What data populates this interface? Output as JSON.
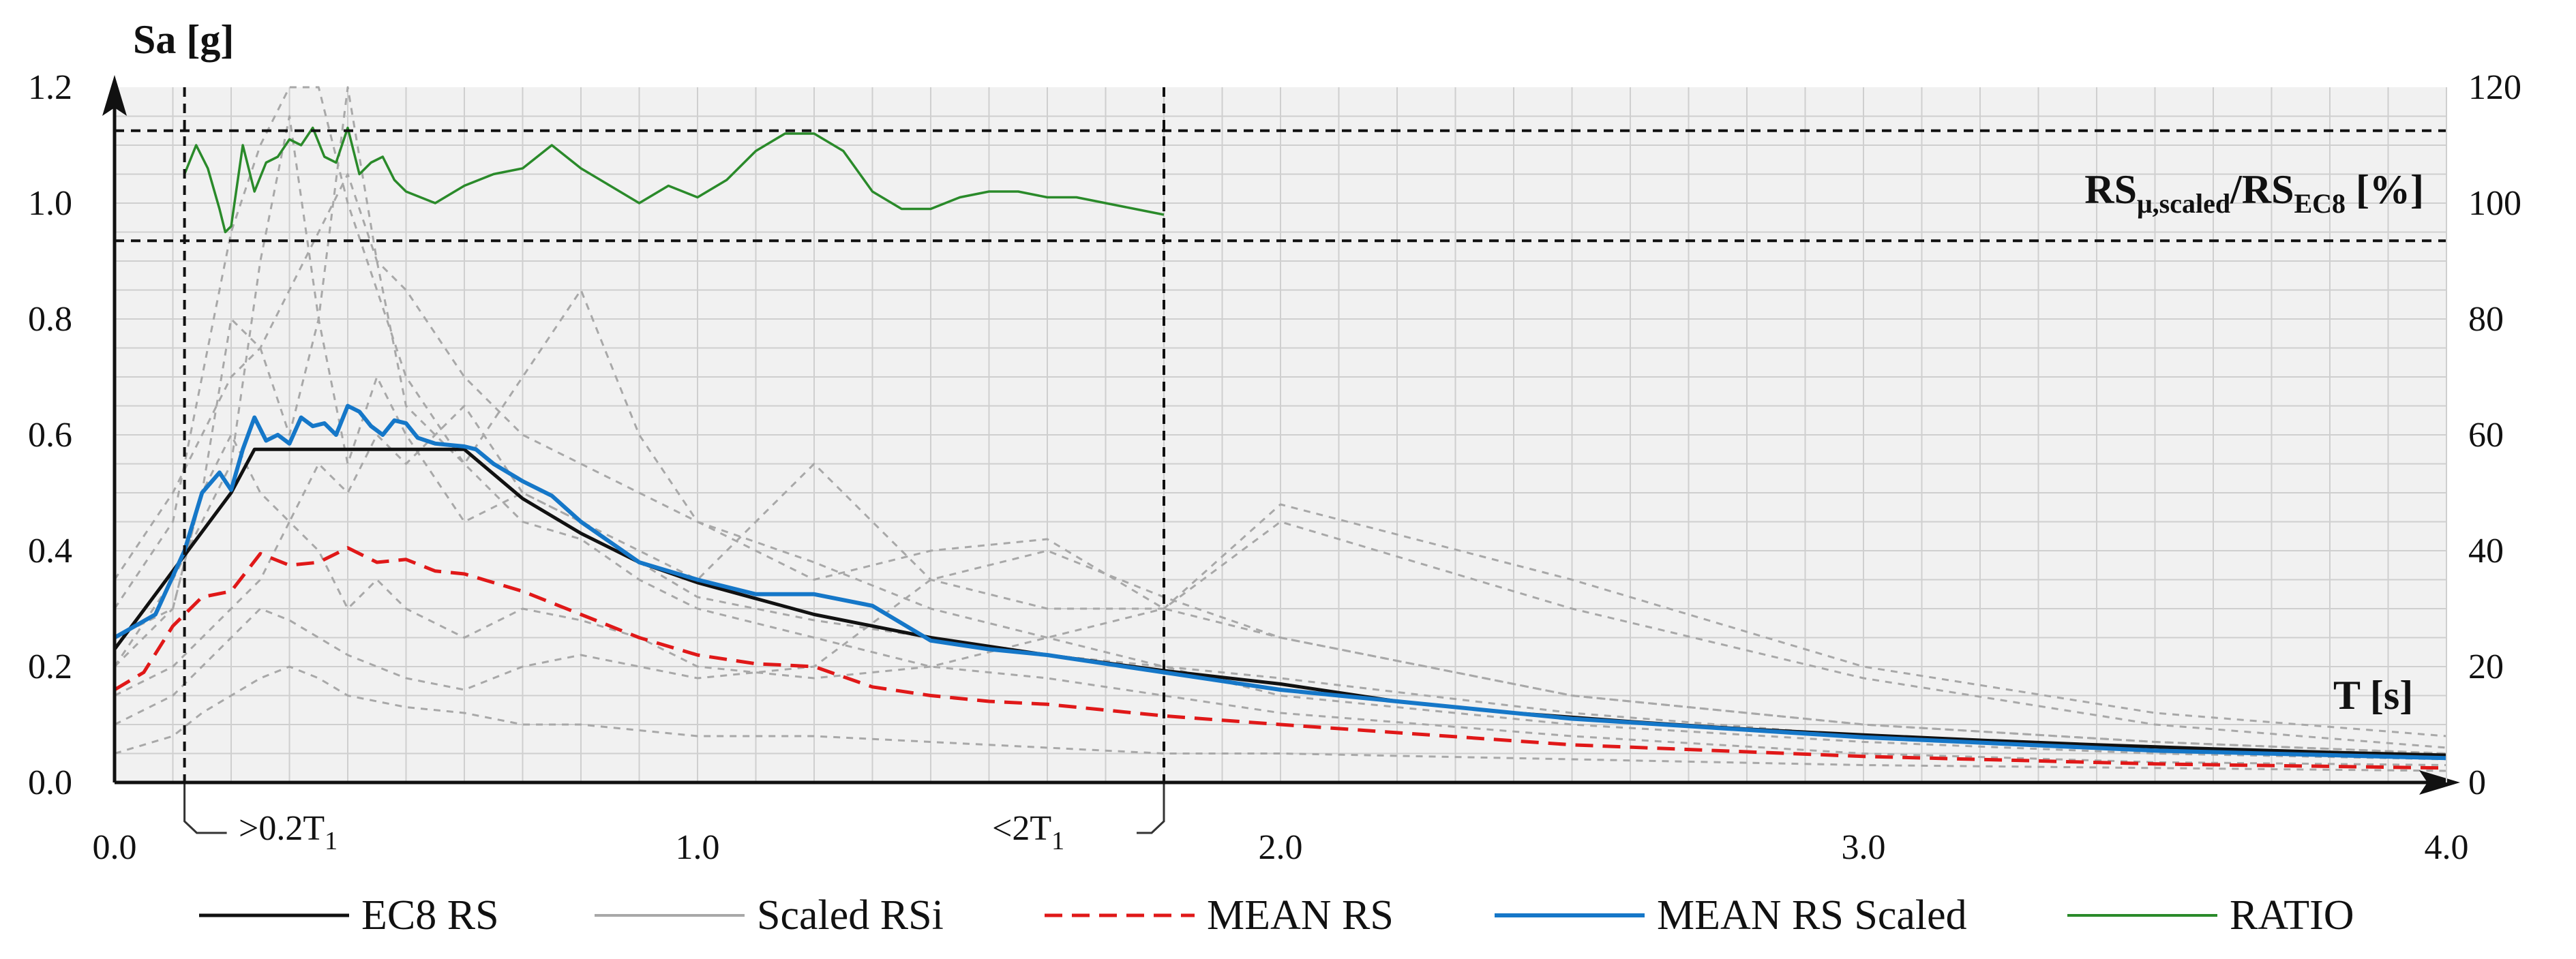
{
  "chart_data": {
    "type": "line",
    "xlabel": "T [s]",
    "ylabel": "Sa [g]",
    "secondary_ylabel": {
      "main": "RS",
      "sub1": "μ,scaled",
      "sep": "/RS",
      "sub2": "EC8",
      "tail": " [%]"
    },
    "xlim": [
      0,
      4.0
    ],
    "ylim": [
      0,
      1.2
    ],
    "secondary_ylim": [
      0,
      120
    ],
    "x_ticks": [
      "0.0",
      "1.0",
      "2.0",
      "3.0",
      "4.0"
    ],
    "y_ticks": [
      "0.0",
      "0.2",
      "0.4",
      "0.6",
      "0.8",
      "1.0",
      "1.2"
    ],
    "secondary_y_ticks": [
      "0",
      "20",
      "40",
      "60",
      "80",
      "100",
      "120"
    ],
    "grid": true,
    "reference_lines": {
      "vertical": [
        {
          "x": 0.12,
          "label_main": ">0.2T",
          "label_sub": "1"
        },
        {
          "x": 1.8,
          "label_main": "<2T",
          "label_sub": "1"
        }
      ],
      "horizontal_secondary": [
        {
          "y": 112.5
        },
        {
          "y": 93.5
        }
      ]
    },
    "legend": [
      {
        "label": "EC8 RS",
        "color": "#111111",
        "style": "solid"
      },
      {
        "label": "Scaled RSi",
        "color": "#a8a8a8",
        "style": "solid"
      },
      {
        "label": "MEAN RS",
        "color": "#e01818",
        "style": "dashed"
      },
      {
        "label": "MEAN RS Scaled",
        "color": "#1577c8",
        "style": "solid"
      },
      {
        "label": "RATIO",
        "color": "#2a8a2a",
        "style": "solid"
      }
    ],
    "series": [
      {
        "name": "EC8 RS",
        "color": "#111111",
        "dash": "none",
        "axis": "left",
        "x": [
          0.0,
          0.2,
          0.24,
          0.6,
          0.7,
          0.8,
          0.9,
          1.0,
          1.2,
          1.4,
          1.6,
          1.8,
          2.0,
          2.2,
          2.4,
          2.6,
          2.8,
          3.0,
          3.2,
          3.4,
          3.6,
          3.8,
          4.0
        ],
        "y": [
          0.23,
          0.5,
          0.575,
          0.575,
          0.49,
          0.43,
          0.38,
          0.345,
          0.29,
          0.25,
          0.22,
          0.193,
          0.17,
          0.14,
          0.12,
          0.105,
          0.092,
          0.082,
          0.073,
          0.065,
          0.058,
          0.052,
          0.047
        ]
      },
      {
        "name": "MEAN RS Scaled",
        "color": "#1577c8",
        "dash": "none",
        "axis": "left",
        "x": [
          0.0,
          0.07,
          0.12,
          0.15,
          0.18,
          0.2,
          0.22,
          0.24,
          0.26,
          0.28,
          0.3,
          0.32,
          0.34,
          0.36,
          0.38,
          0.4,
          0.42,
          0.44,
          0.46,
          0.48,
          0.5,
          0.52,
          0.55,
          0.6,
          0.62,
          0.65,
          0.7,
          0.75,
          0.8,
          0.9,
          1.0,
          1.1,
          1.2,
          1.3,
          1.4,
          1.5,
          1.6,
          1.7,
          1.8,
          2.0,
          2.5,
          3.0,
          3.5,
          4.0
        ],
        "y": [
          0.25,
          0.29,
          0.4,
          0.5,
          0.535,
          0.505,
          0.575,
          0.63,
          0.59,
          0.6,
          0.585,
          0.63,
          0.615,
          0.62,
          0.6,
          0.65,
          0.64,
          0.615,
          0.6,
          0.625,
          0.62,
          0.595,
          0.585,
          0.58,
          0.575,
          0.55,
          0.52,
          0.495,
          0.45,
          0.38,
          0.35,
          0.325,
          0.325,
          0.305,
          0.245,
          0.23,
          0.22,
          0.205,
          0.19,
          0.16,
          0.11,
          0.078,
          0.055,
          0.042
        ]
      },
      {
        "name": "MEAN RS",
        "color": "#e01818",
        "dash": "26 14",
        "axis": "left",
        "x": [
          0.0,
          0.05,
          0.1,
          0.15,
          0.2,
          0.25,
          0.3,
          0.35,
          0.4,
          0.45,
          0.5,
          0.55,
          0.6,
          0.7,
          0.8,
          0.9,
          1.0,
          1.1,
          1.2,
          1.3,
          1.4,
          1.5,
          1.6,
          1.8,
          2.0,
          2.5,
          3.0,
          3.5,
          4.0
        ],
        "y": [
          0.16,
          0.19,
          0.27,
          0.32,
          0.33,
          0.395,
          0.375,
          0.38,
          0.405,
          0.38,
          0.385,
          0.365,
          0.36,
          0.33,
          0.29,
          0.25,
          0.22,
          0.205,
          0.2,
          0.165,
          0.15,
          0.14,
          0.135,
          0.115,
          0.1,
          0.065,
          0.045,
          0.032,
          0.025
        ]
      },
      {
        "name": "RATIO",
        "color": "#2a8a2a",
        "dash": "none",
        "axis": "right",
        "x": [
          0.12,
          0.14,
          0.16,
          0.18,
          0.19,
          0.2,
          0.22,
          0.24,
          0.26,
          0.28,
          0.3,
          0.32,
          0.34,
          0.36,
          0.38,
          0.4,
          0.42,
          0.44,
          0.46,
          0.48,
          0.5,
          0.55,
          0.6,
          0.65,
          0.7,
          0.75,
          0.8,
          0.85,
          0.9,
          0.95,
          1.0,
          1.05,
          1.1,
          1.15,
          1.2,
          1.25,
          1.3,
          1.35,
          1.4,
          1.45,
          1.5,
          1.55,
          1.6,
          1.65,
          1.7,
          1.75,
          1.8
        ],
        "y": [
          105,
          110,
          106,
          99,
          95,
          96,
          110,
          102,
          107,
          108,
          111,
          110,
          113,
          108,
          107,
          113,
          105,
          107,
          108,
          104,
          102,
          100,
          103,
          105,
          106,
          110,
          106,
          103,
          100,
          103,
          101,
          104,
          109,
          112,
          112,
          109,
          102,
          99,
          99,
          101,
          102,
          102,
          101,
          101,
          100,
          99,
          98
        ]
      }
    ],
    "scaled_records": {
      "name": "Scaled RSi",
      "color": "#a8a8a8",
      "dash": "10 9",
      "axis": "left",
      "x": [
        0.0,
        0.1,
        0.15,
        0.2,
        0.25,
        0.3,
        0.35,
        0.4,
        0.45,
        0.5,
        0.6,
        0.7,
        0.8,
        0.9,
        1.0,
        1.2,
        1.4,
        1.6,
        1.8,
        2.0,
        2.5,
        3.0,
        3.5,
        4.0
      ],
      "records": [
        [
          0.3,
          0.45,
          0.7,
          0.95,
          1.1,
          1.2,
          1.25,
          1.0,
          0.85,
          0.7,
          0.55,
          0.45,
          0.42,
          0.35,
          0.3,
          0.25,
          0.2,
          0.18,
          0.15,
          0.12,
          0.08,
          0.05,
          0.035,
          0.03
        ],
        [
          0.25,
          0.3,
          0.5,
          0.8,
          0.75,
          0.6,
          0.8,
          1.2,
          0.9,
          0.65,
          0.55,
          0.7,
          0.85,
          0.6,
          0.45,
          0.35,
          0.4,
          0.42,
          0.3,
          0.25,
          0.15,
          0.1,
          0.07,
          0.05
        ],
        [
          0.2,
          0.35,
          0.45,
          0.55,
          0.9,
          1.15,
          0.8,
          0.55,
          0.7,
          0.6,
          0.45,
          0.5,
          0.45,
          0.4,
          0.35,
          0.55,
          0.35,
          0.3,
          0.3,
          0.45,
          0.3,
          0.18,
          0.1,
          0.06
        ],
        [
          0.15,
          0.2,
          0.25,
          0.3,
          0.35,
          0.45,
          0.4,
          0.3,
          0.35,
          0.3,
          0.25,
          0.3,
          0.28,
          0.25,
          0.2,
          0.18,
          0.2,
          0.25,
          0.3,
          0.48,
          0.35,
          0.2,
          0.12,
          0.08
        ],
        [
          0.1,
          0.15,
          0.2,
          0.25,
          0.3,
          0.28,
          0.25,
          0.22,
          0.2,
          0.18,
          0.16,
          0.2,
          0.22,
          0.2,
          0.18,
          0.2,
          0.35,
          0.4,
          0.32,
          0.25,
          0.15,
          0.1,
          0.07,
          0.05
        ],
        [
          0.35,
          0.5,
          0.6,
          0.7,
          0.75,
          0.85,
          0.95,
          1.05,
          0.9,
          0.85,
          0.7,
          0.6,
          0.55,
          0.5,
          0.45,
          0.38,
          0.3,
          0.25,
          0.2,
          0.18,
          0.12,
          0.08,
          0.06,
          0.045
        ],
        [
          0.2,
          0.3,
          0.5,
          0.6,
          0.5,
          0.45,
          0.55,
          0.5,
          0.6,
          0.55,
          0.65,
          0.5,
          0.45,
          0.38,
          0.32,
          0.28,
          0.25,
          0.22,
          0.2,
          0.15,
          0.1,
          0.07,
          0.05,
          0.04
        ],
        [
          0.05,
          0.08,
          0.12,
          0.15,
          0.18,
          0.2,
          0.18,
          0.15,
          0.14,
          0.13,
          0.12,
          0.1,
          0.1,
          0.09,
          0.08,
          0.08,
          0.07,
          0.06,
          0.05,
          0.05,
          0.04,
          0.03,
          0.025,
          0.02
        ]
      ]
    }
  }
}
